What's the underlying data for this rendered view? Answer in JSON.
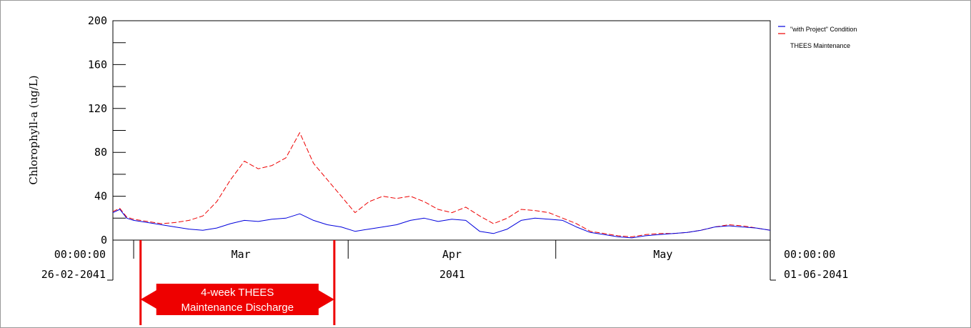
{
  "chart_data": {
    "type": "line",
    "ylabel": "Chlorophyll-a (ug/L)",
    "ylim": [
      0,
      200
    ],
    "yticks": [
      0,
      40,
      80,
      120,
      160,
      200
    ],
    "xlim": [
      "2041-02-26",
      "2041-06-01"
    ],
    "x_start_label": {
      "time": "00:00:00",
      "date": "26-02-2041"
    },
    "x_end_label": {
      "time": "00:00:00",
      "date": "01-06-2041"
    },
    "month_labels": [
      "Mar",
      "Apr",
      "May"
    ],
    "year_label": "2041",
    "grid": false,
    "legend_position": "top-right",
    "series": [
      {
        "name": "\"with Project\" Condition",
        "color": "#0000dd",
        "style": "solid",
        "x": [
          "2041-02-26",
          "2041-02-27",
          "2041-02-28",
          "2041-03-01",
          "2041-03-03",
          "2041-03-05",
          "2041-03-07",
          "2041-03-09",
          "2041-03-11",
          "2041-03-13",
          "2041-03-15",
          "2041-03-17",
          "2041-03-19",
          "2041-03-21",
          "2041-03-23",
          "2041-03-25",
          "2041-03-27",
          "2041-03-29",
          "2041-03-31",
          "2041-04-02",
          "2041-04-04",
          "2041-04-06",
          "2041-04-08",
          "2041-04-10",
          "2041-04-12",
          "2041-04-14",
          "2041-04-16",
          "2041-04-18",
          "2041-04-20",
          "2041-04-22",
          "2041-04-24",
          "2041-04-26",
          "2041-04-28",
          "2041-04-30",
          "2041-05-02",
          "2041-05-04",
          "2041-05-06",
          "2041-05-08",
          "2041-05-10",
          "2041-05-12",
          "2041-05-14",
          "2041-05-16",
          "2041-05-18",
          "2041-05-20",
          "2041-05-22",
          "2041-05-24",
          "2041-05-26",
          "2041-05-28",
          "2041-05-30",
          "2041-06-01"
        ],
        "y": [
          25,
          28,
          20,
          18,
          16,
          14,
          12,
          10,
          9,
          11,
          15,
          18,
          17,
          19,
          20,
          24,
          18,
          14,
          12,
          8,
          10,
          12,
          14,
          18,
          20,
          17,
          19,
          18,
          8,
          6,
          10,
          18,
          20,
          19,
          18,
          12,
          7,
          5,
          3,
          2,
          4,
          5,
          6,
          7,
          9,
          12,
          13,
          12,
          11,
          9
        ]
      },
      {
        "name": "THEES Maintenance",
        "color": "#ee0000",
        "style": "dashed",
        "x": [
          "2041-02-26",
          "2041-02-27",
          "2041-02-28",
          "2041-03-01",
          "2041-03-03",
          "2041-03-05",
          "2041-03-07",
          "2041-03-09",
          "2041-03-11",
          "2041-03-13",
          "2041-03-15",
          "2041-03-17",
          "2041-03-19",
          "2041-03-21",
          "2041-03-23",
          "2041-03-25",
          "2041-03-27",
          "2041-03-29",
          "2041-03-31",
          "2041-04-02",
          "2041-04-04",
          "2041-04-06",
          "2041-04-08",
          "2041-04-10",
          "2041-04-12",
          "2041-04-14",
          "2041-04-16",
          "2041-04-18",
          "2041-04-20",
          "2041-04-22",
          "2041-04-24",
          "2041-04-26",
          "2041-04-28",
          "2041-04-30",
          "2041-05-02",
          "2041-05-04",
          "2041-05-06",
          "2041-05-08",
          "2041-05-10",
          "2041-05-12",
          "2041-05-14",
          "2041-05-16",
          "2041-05-18",
          "2041-05-20",
          "2041-05-22",
          "2041-05-24",
          "2041-05-26",
          "2041-05-28",
          "2041-05-30",
          "2041-06-01"
        ],
        "y": [
          26,
          29,
          21,
          19,
          17,
          15,
          16,
          18,
          22,
          35,
          55,
          72,
          65,
          68,
          75,
          98,
          70,
          55,
          40,
          25,
          35,
          40,
          38,
          40,
          35,
          28,
          25,
          30,
          22,
          15,
          20,
          28,
          27,
          25,
          20,
          15,
          8,
          6,
          4,
          3,
          5,
          6,
          6,
          7,
          9,
          12,
          14,
          13,
          11,
          9
        ]
      }
    ],
    "annotation": {
      "line1": "4-week THEES",
      "line2": "Maintenance Discharge",
      "start": "2041-03-02",
      "end": "2041-03-30",
      "color": "#ee0000"
    }
  }
}
